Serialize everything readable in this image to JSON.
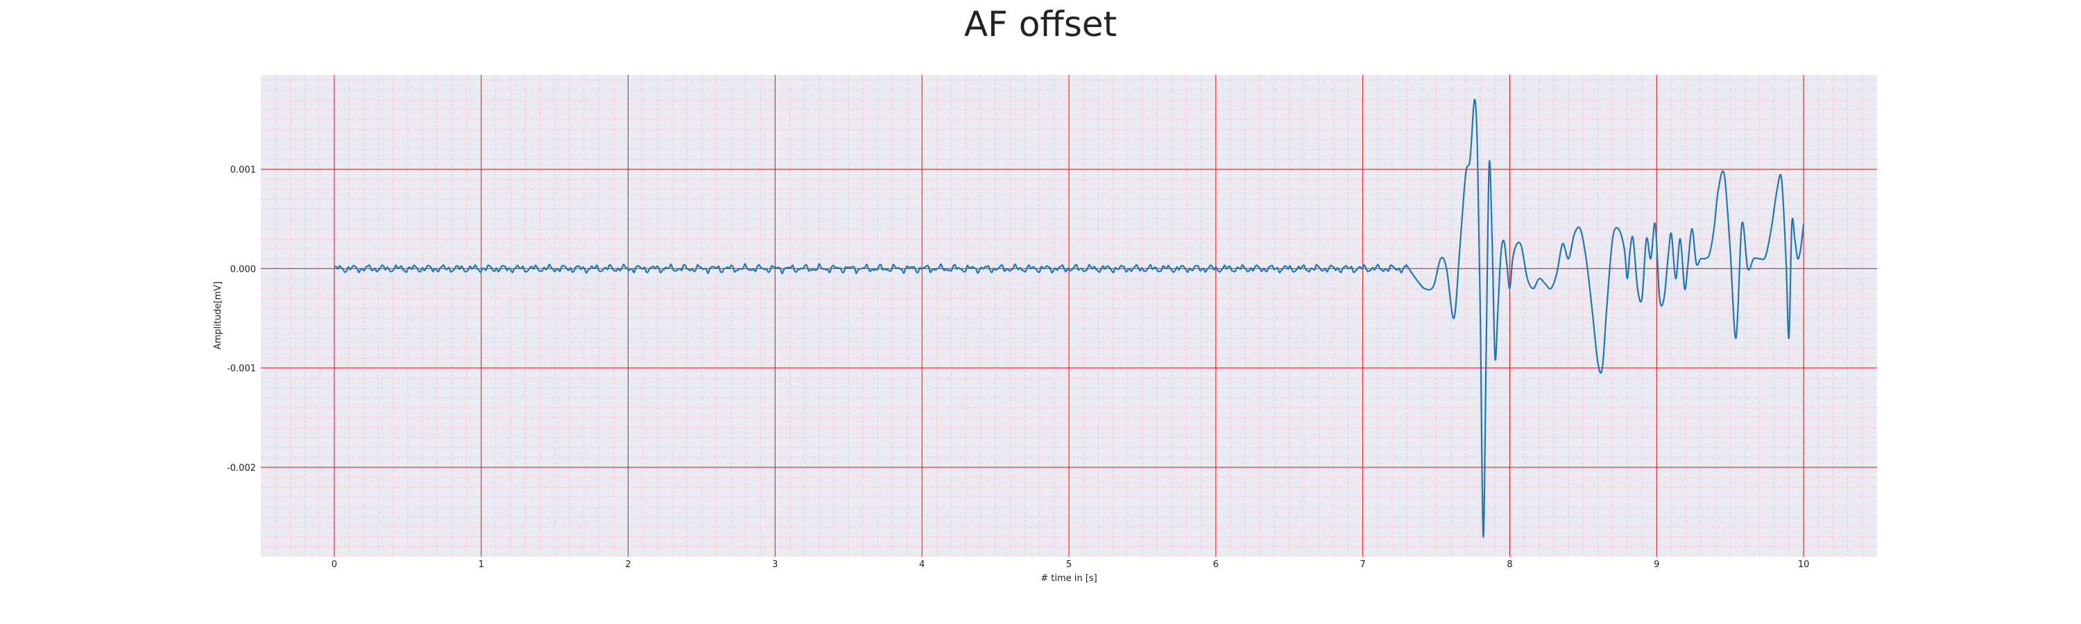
{
  "chart_data": {
    "type": "line",
    "title": "AF offset",
    "xlabel": "# time in [s]",
    "ylabel": "Amplitude[mV]",
    "xlim": [
      -0.5,
      10.5
    ],
    "ylim": [
      -0.0029,
      0.00195
    ],
    "x_ticks": [
      0,
      1,
      2,
      3,
      4,
      5,
      6,
      7,
      8,
      9,
      10
    ],
    "x_tick_labels": [
      "0",
      "1",
      "2",
      "3",
      "4",
      "5",
      "6",
      "7",
      "8",
      "9",
      "10"
    ],
    "y_ticks": [
      0.001,
      0.0,
      -0.001,
      -0.002
    ],
    "y_tick_labels": [
      "0.001",
      "0.000",
      "-0.001",
      "-0.002"
    ],
    "grid": true,
    "minor_grid": true,
    "legend": "none",
    "colors": {
      "line": "#1f77b4",
      "major_grid": "#ff0000",
      "minor_grid": "#ffb6c1",
      "background": "#eaeaf2"
    },
    "series": [
      {
        "x": [
          7.3,
          7.36,
          7.42,
          7.48,
          7.53,
          7.57,
          7.62,
          7.66,
          7.7,
          7.73,
          7.76,
          7.78,
          7.8,
          7.82,
          7.84,
          7.86,
          7.88,
          7.9,
          7.92,
          7.94,
          7.96,
          7.98,
          8.0,
          8.02,
          8.05,
          8.08,
          8.12,
          8.16,
          8.2,
          8.24,
          8.28,
          8.32,
          8.36,
          8.4,
          8.44,
          8.48,
          8.52,
          8.56,
          8.6,
          8.63,
          8.66,
          8.7,
          8.74,
          8.78,
          8.8,
          8.82,
          8.84,
          8.87,
          8.9,
          8.93,
          8.96,
          8.99,
          9.02,
          9.05,
          9.08,
          9.1,
          9.13,
          9.16,
          9.19,
          9.21,
          9.24,
          9.27,
          9.3,
          9.33,
          9.36,
          9.39,
          9.42,
          9.46,
          9.5,
          9.54,
          9.58,
          9.62,
          9.66,
          9.7,
          9.74,
          9.78,
          9.82,
          9.85,
          9.88,
          9.9,
          9.92,
          9.94,
          9.96,
          9.98,
          10.0
        ],
        "y": [
          3e-05,
          -0.0001,
          -0.0002,
          -0.00018,
          0.0001,
          0.0,
          -0.0005,
          0.0002,
          0.00095,
          0.0011,
          0.0017,
          0.0012,
          -0.0005,
          -0.0027,
          -0.0008,
          0.00105,
          0.0003,
          -0.0009,
          -0.0004,
          0.00015,
          0.00028,
          5e-05,
          -0.0002,
          0.0001,
          0.00025,
          0.00022,
          -0.0001,
          -0.0002,
          -0.0001,
          -0.00015,
          -0.0002,
          -5e-05,
          0.00025,
          0.0001,
          0.00035,
          0.0004,
          0.0001,
          -0.0004,
          -0.00095,
          -0.001,
          -0.0004,
          0.0003,
          0.0004,
          0.0002,
          -0.0001,
          0.0002,
          0.0003,
          -0.0002,
          -0.0003,
          0.0003,
          0.0001,
          0.00045,
          -0.0003,
          -0.0003,
          0.00015,
          0.00035,
          -0.0001,
          0.0003,
          -0.0002,
          0.0,
          0.0004,
          5e-05,
          0.0001,
          0.0001,
          0.00015,
          0.0004,
          0.0008,
          0.00095,
          0.0002,
          -0.0007,
          0.00045,
          0.0,
          0.0001,
          0.0001,
          0.00012,
          0.0004,
          0.0008,
          0.0009,
          0.0001,
          -0.0007,
          0.00045,
          0.0003,
          0.0001,
          0.0002,
          0.00045
        ]
      }
    ]
  }
}
